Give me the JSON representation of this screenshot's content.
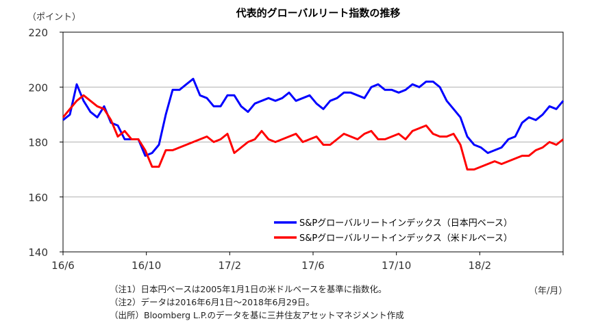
{
  "chart_data": {
    "type": "line",
    "title": "代表的グローバルリート指数の推移",
    "ylabel": "（ポイント）",
    "xlabel": "（年/月）",
    "ylim": [
      140,
      220
    ],
    "yticks": [
      140,
      160,
      180,
      200,
      220
    ],
    "x_range_months": [
      0,
      24
    ],
    "x_start": "2016/6",
    "xticks": [
      {
        "label": "16/6",
        "month": 0
      },
      {
        "label": "16/10",
        "month": 4
      },
      {
        "label": "17/2",
        "month": 8
      },
      {
        "label": "17/6",
        "month": 12
      },
      {
        "label": "17/10",
        "month": 16
      },
      {
        "label": "18/2",
        "month": 20
      }
    ],
    "grid": true,
    "legend_position": "bottom-right",
    "x_step_months": 0.3288,
    "series": [
      {
        "name": "S&Pグローバルリートインデックス（日本円ベース）",
        "color": "#0000ff",
        "values": [
          188,
          190,
          201,
          195,
          191,
          189,
          193,
          187,
          186,
          181,
          181,
          181,
          175,
          176,
          179,
          190,
          199,
          199,
          201,
          203,
          197,
          196,
          193,
          193,
          197,
          197,
          193,
          191,
          194,
          195,
          196,
          195,
          196,
          198,
          195,
          196,
          197,
          194,
          192,
          195,
          196,
          198,
          198,
          197,
          196,
          200,
          201,
          199,
          199,
          198,
          199,
          201,
          200,
          202,
          202,
          200,
          195,
          192,
          189,
          182,
          179,
          178,
          176,
          177,
          178,
          181,
          182,
          187,
          189,
          188,
          190,
          193,
          192,
          195
        ]
      },
      {
        "name": "S&Pグローバルリートインデックス（米ドルベース）",
        "color": "#ff0000",
        "values": [
          189,
          192,
          195,
          197,
          195,
          193,
          192,
          188,
          182,
          184,
          181,
          181,
          177,
          171,
          171,
          177,
          177,
          178,
          179,
          180,
          181,
          182,
          180,
          181,
          183,
          176,
          178,
          180,
          181,
          184,
          181,
          180,
          181,
          182,
          183,
          180,
          181,
          182,
          179,
          179,
          181,
          183,
          182,
          181,
          183,
          184,
          181,
          181,
          182,
          183,
          181,
          184,
          185,
          186,
          183,
          182,
          182,
          183,
          179,
          170,
          170,
          171,
          172,
          173,
          172,
          173,
          174,
          175,
          175,
          177,
          178,
          180,
          179,
          181
        ]
      }
    ]
  },
  "notes": [
    "（注1）日本円ベースは2005年1月1日の米ドルベースを基準に指数化。",
    "（注2）データは2016年6月1日～2018年6月29日。",
    "（出所）Bloomberg L.P.のデータを基に三井住友アセットマネジメント作成"
  ]
}
